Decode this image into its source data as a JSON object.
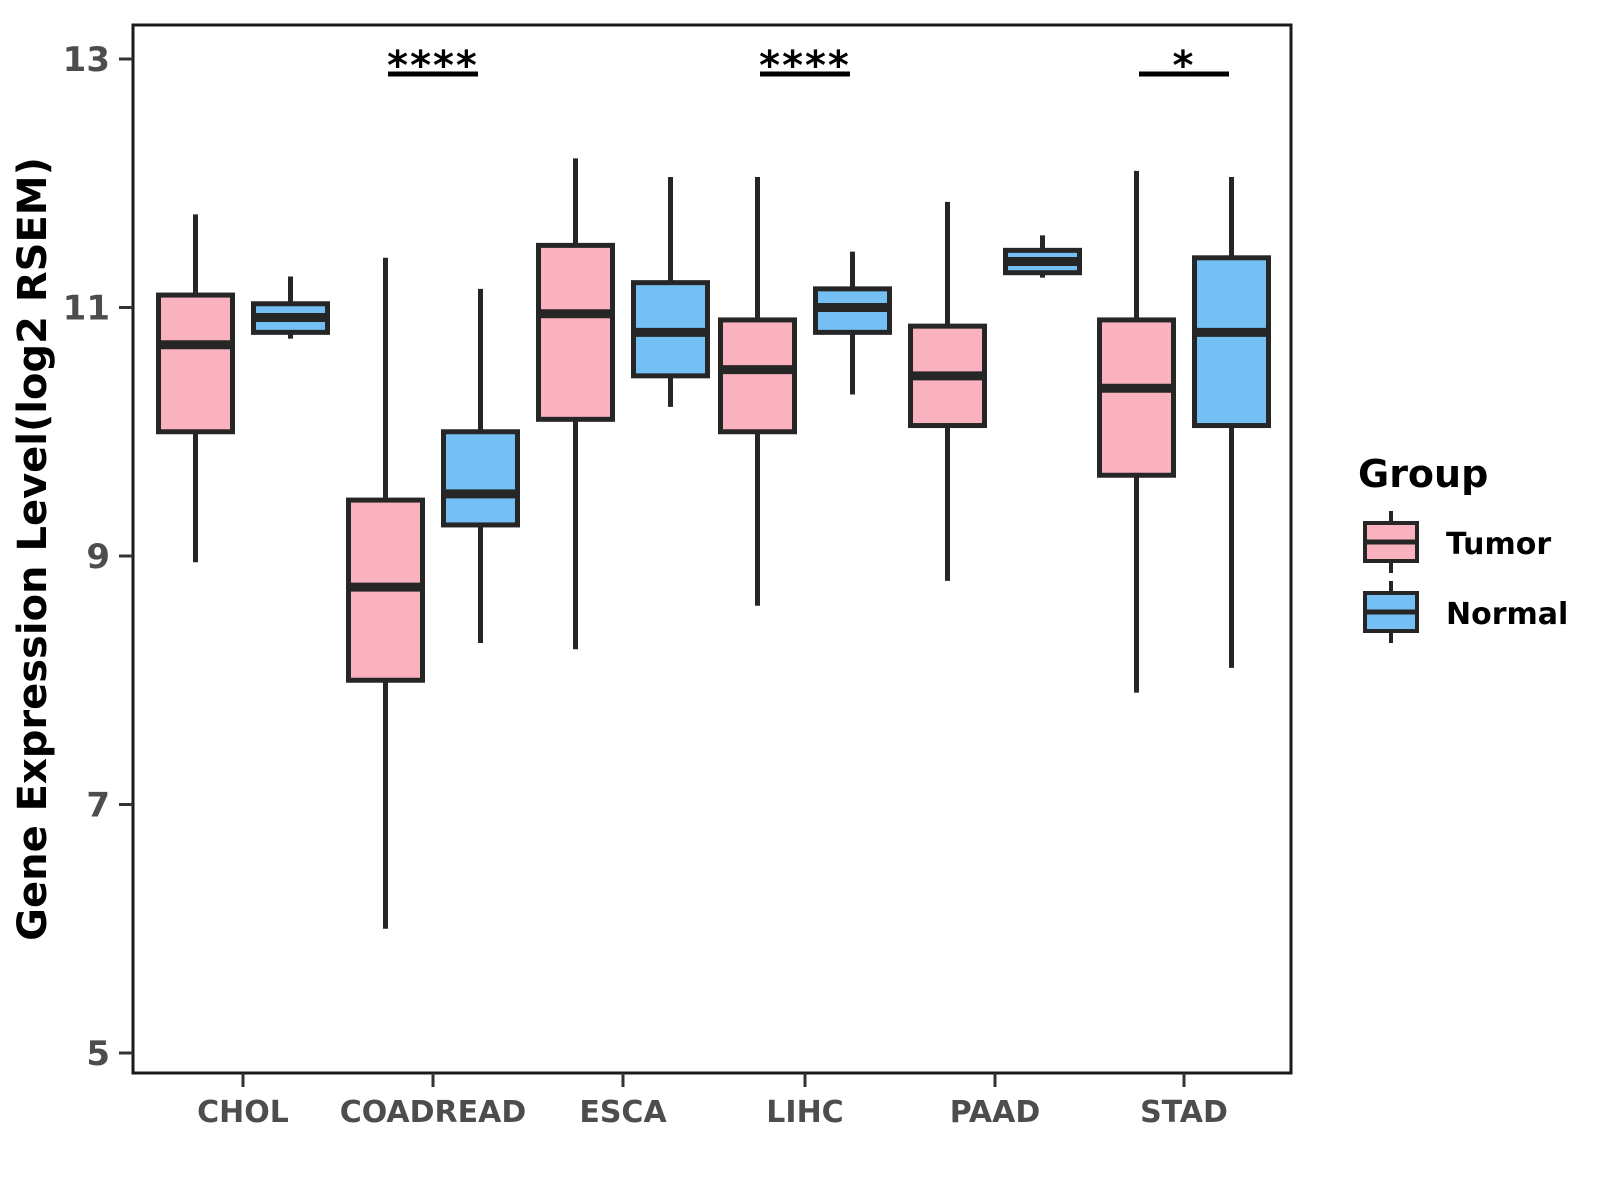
{
  "chart_data": {
    "type": "boxplot",
    "title": "",
    "xlabel": "",
    "ylabel": "Gene Expression Level(log2 RSEM)",
    "ylim": [
      4.84,
      13.27
    ],
    "yticks": [
      5,
      7,
      9,
      11,
      13
    ],
    "grid": "off",
    "categories": [
      "CHOL",
      "COADREAD",
      "ESCA",
      "LIHC",
      "PAAD",
      "STAD"
    ],
    "series": [
      {
        "name": "Tumor",
        "color": "#FAB2BF",
        "boxes": [
          {
            "category": "CHOL",
            "min": 8.95,
            "q1": 10.0,
            "median": 10.7,
            "q3": 11.1,
            "max": 11.75
          },
          {
            "category": "COADREAD",
            "min": 6.0,
            "q1": 8.0,
            "median": 8.75,
            "q3": 9.45,
            "max": 11.4
          },
          {
            "category": "ESCA",
            "min": 8.25,
            "q1": 10.1,
            "median": 10.95,
            "q3": 11.5,
            "max": 12.2
          },
          {
            "category": "LIHC",
            "min": 8.6,
            "q1": 10.0,
            "median": 10.5,
            "q3": 10.9,
            "max": 12.05
          },
          {
            "category": "PAAD",
            "min": 8.8,
            "q1": 10.05,
            "median": 10.45,
            "q3": 10.85,
            "max": 11.85
          },
          {
            "category": "STAD",
            "min": 7.9,
            "q1": 9.65,
            "median": 10.35,
            "q3": 10.9,
            "max": 12.1
          }
        ]
      },
      {
        "name": "Normal",
        "color": "#74C0F5",
        "boxes": [
          {
            "category": "CHOL",
            "min": 10.75,
            "q1": 10.8,
            "median": 10.92,
            "q3": 11.03,
            "max": 11.25
          },
          {
            "category": "COADREAD",
            "min": 8.3,
            "q1": 9.25,
            "median": 9.5,
            "q3": 10.0,
            "max": 11.15
          },
          {
            "category": "ESCA",
            "min": 10.2,
            "q1": 10.45,
            "median": 10.8,
            "q3": 11.2,
            "max": 12.05
          },
          {
            "category": "LIHC",
            "min": 10.3,
            "q1": 10.8,
            "median": 11.0,
            "q3": 11.15,
            "max": 11.45
          },
          {
            "category": "PAAD",
            "min": 11.24,
            "q1": 11.28,
            "median": 11.37,
            "q3": 11.46,
            "max": 11.58
          },
          {
            "category": "STAD",
            "min": 8.1,
            "q1": 10.05,
            "median": 10.8,
            "q3": 11.4,
            "max": 12.05
          }
        ]
      }
    ],
    "significance": [
      {
        "category": "COADREAD",
        "label": "****"
      },
      {
        "category": "LIHC",
        "label": "****"
      },
      {
        "category": "STAD",
        "label": "*"
      }
    ],
    "legend": {
      "title": "Group",
      "position": "right",
      "entries": [
        "Tumor",
        "Normal"
      ]
    },
    "colors": {
      "box_border": "#262626",
      "axis_text": "#4D4D4D",
      "panel_border": "#1A1A1A",
      "significance": "#000000",
      "background": "#FFFFFF"
    }
  }
}
